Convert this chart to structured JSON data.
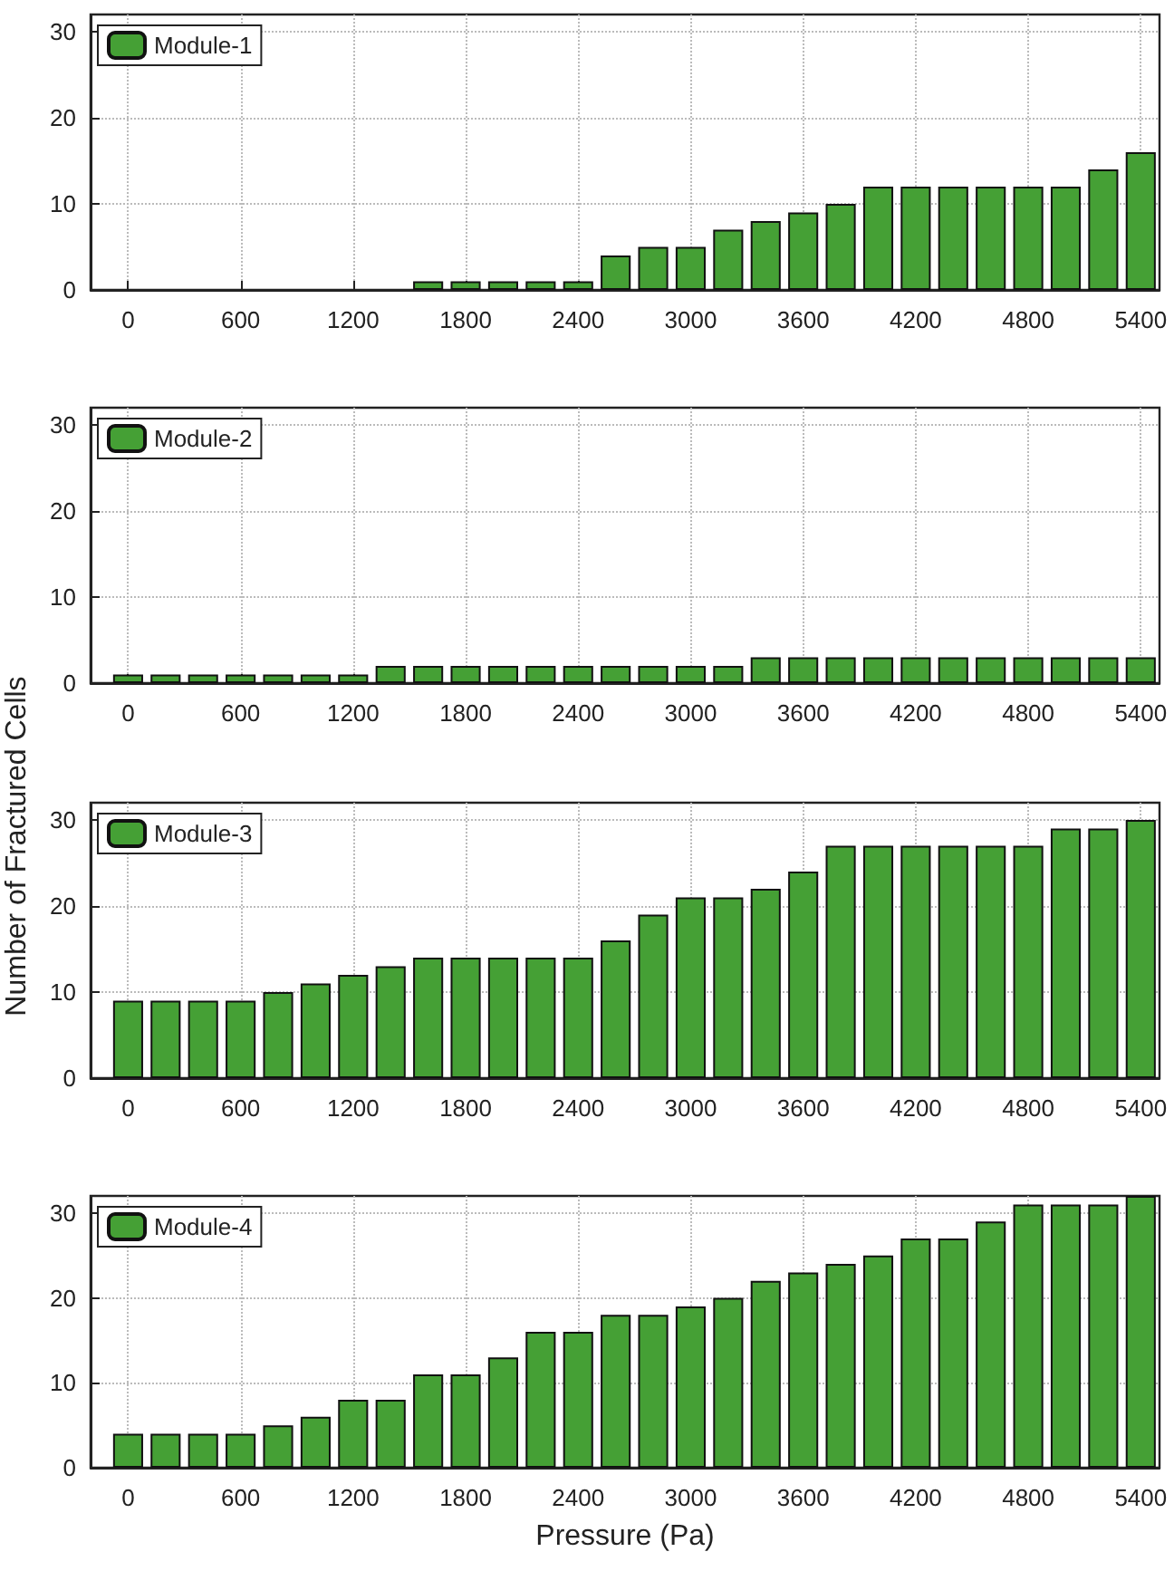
{
  "chart_data": [
    {
      "type": "bar",
      "x": [
        0,
        200,
        400,
        600,
        800,
        1000,
        1200,
        1400,
        1600,
        1800,
        2000,
        2200,
        2400,
        2600,
        2800,
        3000,
        3200,
        3400,
        3600,
        3800,
        4000,
        4200,
        4400,
        4600,
        4800,
        5000,
        5200,
        5400
      ],
      "series": [
        {
          "name": "Module-1",
          "color": "#45a035",
          "values": [
            0,
            0,
            0,
            0,
            0,
            0,
            0,
            0,
            1,
            1,
            1,
            1,
            1,
            4,
            5,
            5,
            7,
            8,
            9,
            10,
            12,
            12,
            12,
            12,
            12,
            12,
            14,
            16
          ]
        }
      ],
      "xlim": [
        -200,
        5500
      ],
      "xticks": [
        0,
        600,
        1200,
        1800,
        2400,
        3000,
        3600,
        4200,
        4800,
        5400
      ],
      "ylim": [
        0,
        32
      ],
      "yticks": [
        0,
        10,
        20,
        30
      ],
      "grid": true,
      "legend": "top left"
    },
    {
      "type": "bar",
      "ylabel": "Number of Fractured Cells",
      "x": [
        0,
        200,
        400,
        600,
        800,
        1000,
        1200,
        1400,
        1600,
        1800,
        2000,
        2200,
        2400,
        2600,
        2800,
        3000,
        3200,
        3400,
        3600,
        3800,
        4000,
        4200,
        4400,
        4600,
        4800,
        5000,
        5200,
        5400
      ],
      "series": [
        {
          "name": "Module-2",
          "color": "#45a035",
          "values": [
            1,
            1,
            1,
            1,
            1,
            1,
            1,
            2,
            2,
            2,
            2,
            2,
            2,
            2,
            2,
            2,
            2,
            3,
            3,
            3,
            3,
            3,
            3,
            3,
            3,
            3,
            3,
            3
          ]
        }
      ],
      "xlim": [
        -200,
        5500
      ],
      "xticks": [
        0,
        600,
        1200,
        1800,
        2400,
        3000,
        3600,
        4200,
        4800,
        5400
      ],
      "ylim": [
        0,
        32
      ],
      "yticks": [
        0,
        10,
        20,
        30
      ],
      "grid": true,
      "legend": "top left"
    },
    {
      "type": "bar",
      "x": [
        0,
        200,
        400,
        600,
        800,
        1000,
        1200,
        1400,
        1600,
        1800,
        2000,
        2200,
        2400,
        2600,
        2800,
        3000,
        3200,
        3400,
        3600,
        3800,
        4000,
        4200,
        4400,
        4600,
        4800,
        5000,
        5200,
        5400
      ],
      "series": [
        {
          "name": "Module-3",
          "color": "#45a035",
          "values": [
            9,
            9,
            9,
            9,
            10,
            11,
            12,
            13,
            14,
            14,
            14,
            14,
            14,
            16,
            19,
            21,
            21,
            22,
            24,
            27,
            27,
            27,
            27,
            27,
            27,
            29,
            29,
            30
          ]
        }
      ],
      "xlim": [
        -200,
        5500
      ],
      "xticks": [
        0,
        600,
        1200,
        1800,
        2400,
        3000,
        3600,
        4200,
        4800,
        5400
      ],
      "ylim": [
        0,
        32
      ],
      "yticks": [
        0,
        10,
        20,
        30
      ],
      "grid": true,
      "legend": "top left"
    },
    {
      "type": "bar",
      "xlabel": "Pressure (Pa)",
      "x": [
        0,
        200,
        400,
        600,
        800,
        1000,
        1200,
        1400,
        1600,
        1800,
        2000,
        2200,
        2400,
        2600,
        2800,
        3000,
        3200,
        3400,
        3600,
        3800,
        4000,
        4200,
        4400,
        4600,
        4800,
        5000,
        5200,
        5400
      ],
      "series": [
        {
          "name": "Module-4",
          "color": "#45a035",
          "values": [
            4,
            4,
            4,
            4,
            5,
            6,
            8,
            8,
            11,
            11,
            13,
            16,
            16,
            18,
            18,
            19,
            20,
            22,
            23,
            24,
            25,
            27,
            27,
            29,
            31,
            31,
            31,
            32
          ]
        }
      ],
      "xlim": [
        -200,
        5500
      ],
      "xticks": [
        0,
        600,
        1200,
        1800,
        2400,
        3000,
        3600,
        4200,
        4800,
        5400
      ],
      "ylim": [
        0,
        32
      ],
      "yticks": [
        0,
        10,
        20,
        30
      ],
      "grid": true,
      "legend": "top left"
    }
  ]
}
